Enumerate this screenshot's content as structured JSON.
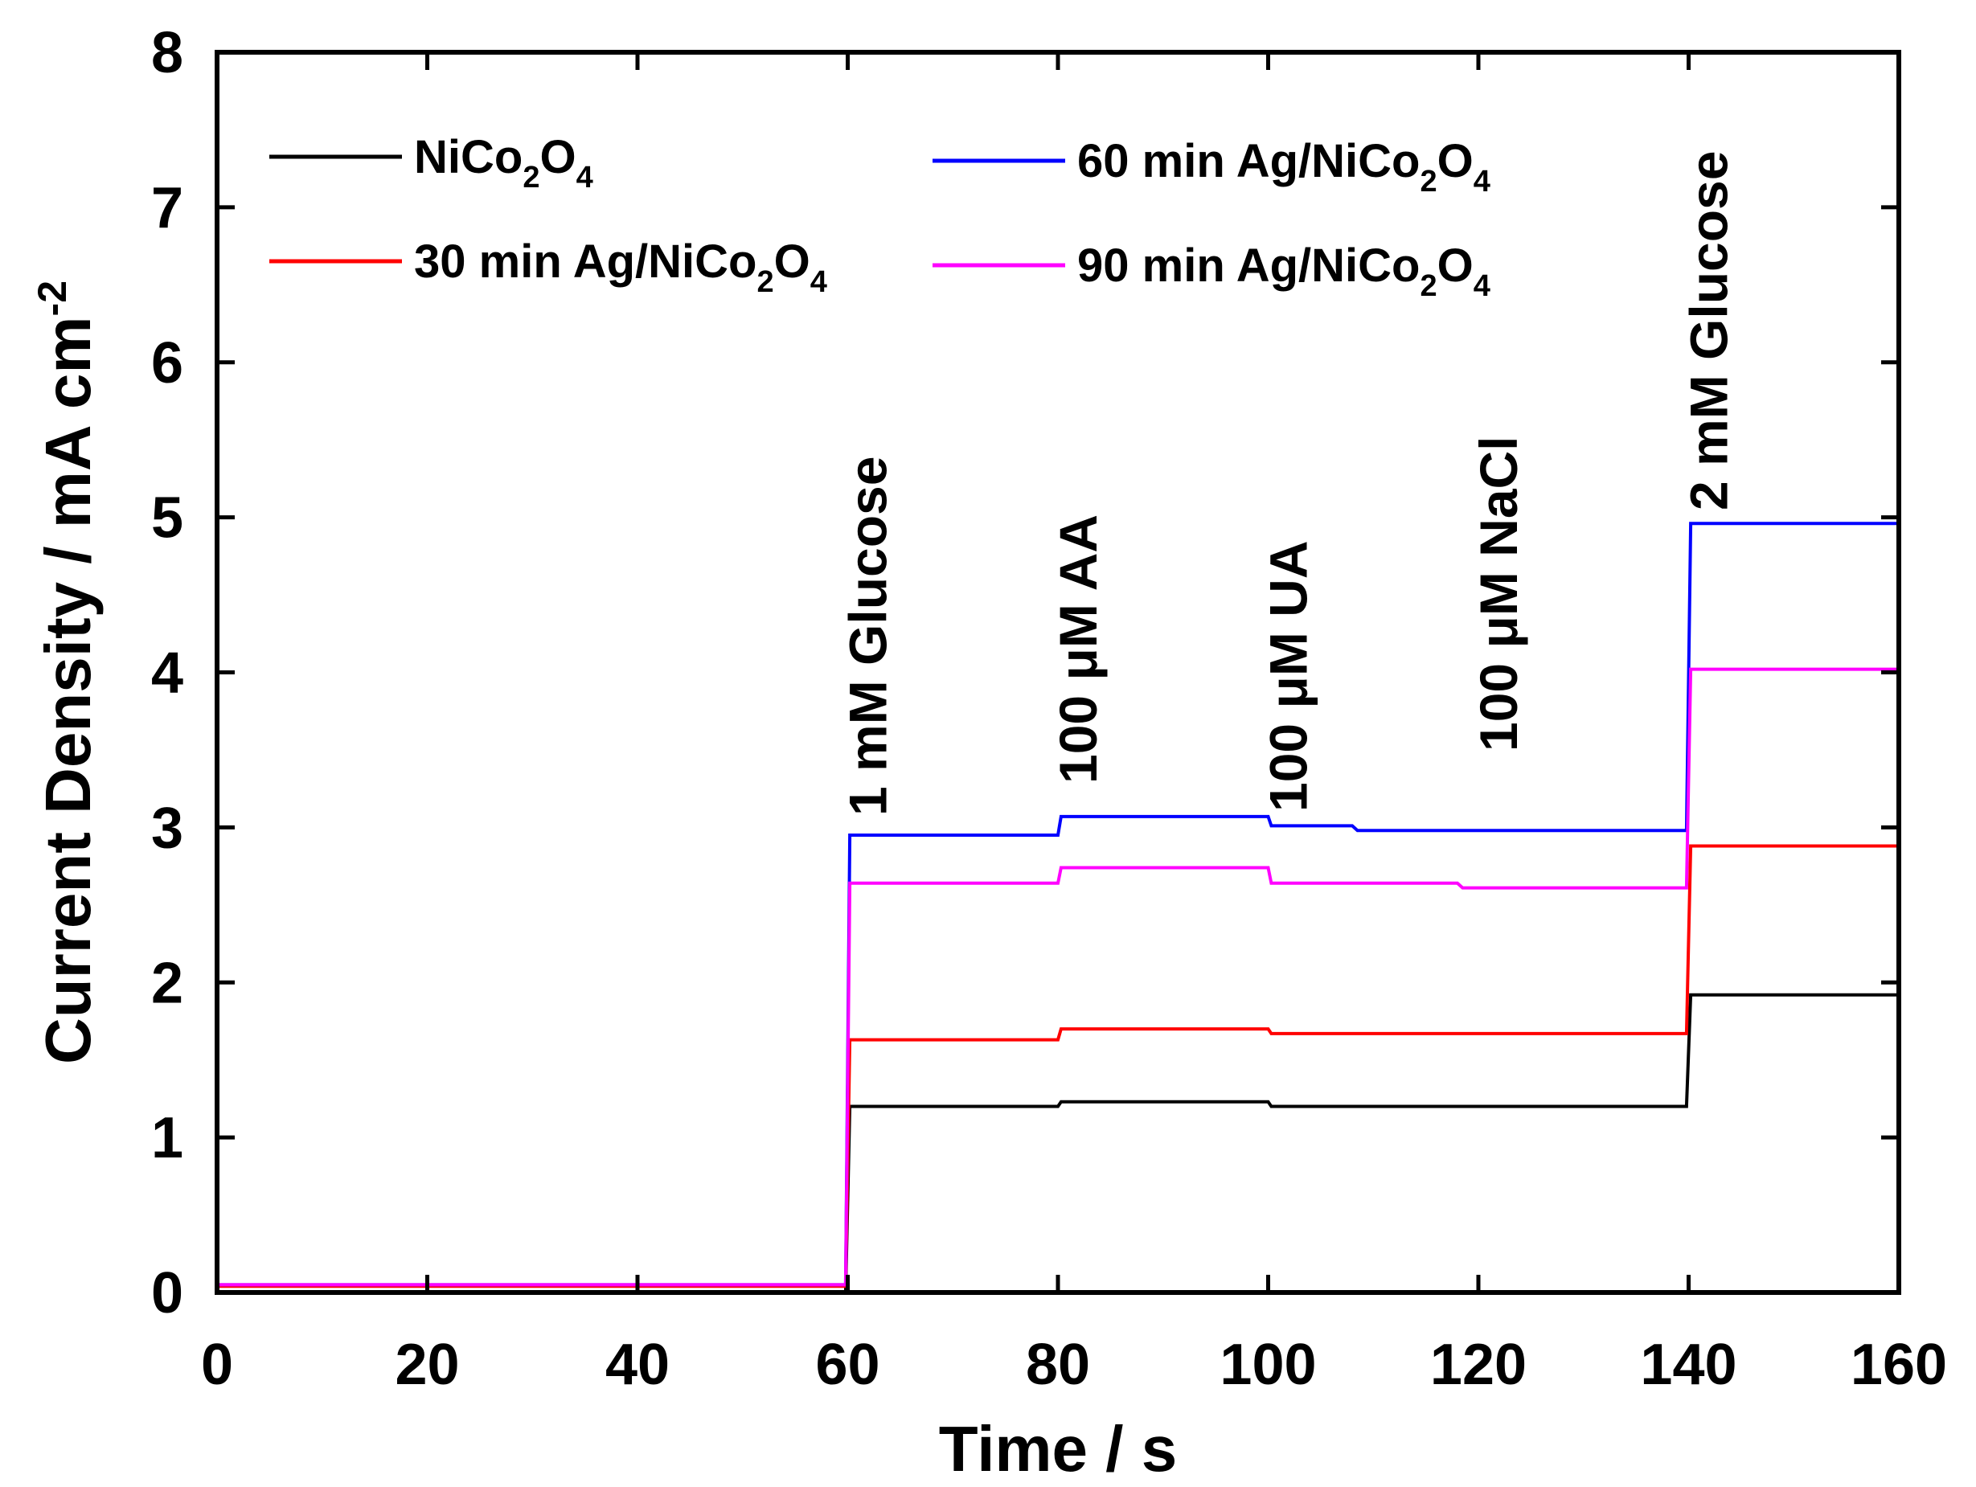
{
  "chart_data": {
    "type": "line",
    "xlabel": "Time / s",
    "ylabel_text": "Current Density / mA cm",
    "ylabel_sup": "-2",
    "xlim": [
      0,
      160
    ],
    "ylim": [
      0,
      8
    ],
    "x_ticks": [
      "0",
      "20",
      "40",
      "60",
      "80",
      "100",
      "120",
      "140",
      "160"
    ],
    "y_ticks": [
      "0",
      "1",
      "2",
      "3",
      "4",
      "5",
      "6",
      "7",
      "8"
    ],
    "grid": false,
    "legend_position": "top-left",
    "annotations": [
      {
        "text": "1 mM Glucose",
        "x": 60
      },
      {
        "text": "100 μM AA",
        "x": 80
      },
      {
        "text": "100 μM UA",
        "x": 100
      },
      {
        "text": "100 μM NaCl",
        "x": 120
      },
      {
        "text": "2 mM Glucose",
        "x": 140
      }
    ],
    "series": [
      {
        "legend": {
          "prefix": "",
          "parts": [
            [
              "N",
              ""
            ],
            [
              "iCo",
              ""
            ],
            [
              "2",
              "sub"
            ],
            [
              "O",
              ""
            ],
            [
              "4",
              "sub"
            ]
          ]
        },
        "color": "#000000",
        "points": [
          [
            0,
            0.0
          ],
          [
            59.8,
            0.0
          ],
          [
            60.2,
            1.2
          ],
          [
            80,
            1.2
          ],
          [
            80.3,
            1.23
          ],
          [
            100,
            1.23
          ],
          [
            100.3,
            1.2
          ],
          [
            139.8,
            1.2
          ],
          [
            140.2,
            1.92
          ],
          [
            160,
            1.92
          ]
        ]
      },
      {
        "legend": {
          "prefix": "30 min Ag/",
          "parts": [
            [
              "N",
              ""
            ],
            [
              "iCo",
              ""
            ],
            [
              "2",
              "sub"
            ],
            [
              "O",
              ""
            ],
            [
              "4",
              "sub"
            ]
          ]
        },
        "color": "#ff0000",
        "points": [
          [
            0,
            0.04
          ],
          [
            59.8,
            0.04
          ],
          [
            60.2,
            1.63
          ],
          [
            80,
            1.63
          ],
          [
            80.3,
            1.7
          ],
          [
            100,
            1.7
          ],
          [
            100.3,
            1.67
          ],
          [
            139.8,
            1.67
          ],
          [
            140.2,
            2.88
          ],
          [
            160,
            2.88
          ]
        ]
      },
      {
        "legend": {
          "prefix": "60 min Ag/",
          "parts": [
            [
              "N",
              ""
            ],
            [
              "iCo",
              ""
            ],
            [
              "2",
              "sub"
            ],
            [
              "O",
              ""
            ],
            [
              "4",
              "sub"
            ]
          ]
        },
        "color": "#0000ff",
        "points": [
          [
            0,
            0.05
          ],
          [
            59.8,
            0.05
          ],
          [
            60.2,
            2.95
          ],
          [
            80,
            2.95
          ],
          [
            80.3,
            3.07
          ],
          [
            100,
            3.07
          ],
          [
            100.3,
            3.01
          ],
          [
            108,
            3.01
          ],
          [
            108.5,
            2.98
          ],
          [
            139.8,
            2.98
          ],
          [
            140.2,
            4.96
          ],
          [
            160,
            4.96
          ]
        ]
      },
      {
        "legend": {
          "prefix": "90 min Ag/",
          "parts": [
            [
              "N",
              ""
            ],
            [
              "iCo",
              ""
            ],
            [
              "2",
              "sub"
            ],
            [
              "O",
              ""
            ],
            [
              "4",
              "sub"
            ]
          ]
        },
        "color": "#ff00ff",
        "points": [
          [
            0,
            0.05
          ],
          [
            59.8,
            0.05
          ],
          [
            60.2,
            2.64
          ],
          [
            80,
            2.64
          ],
          [
            80.3,
            2.74
          ],
          [
            100,
            2.74
          ],
          [
            100.3,
            2.64
          ],
          [
            118,
            2.64
          ],
          [
            118.5,
            2.61
          ],
          [
            139.8,
            2.61
          ],
          [
            140.2,
            4.02
          ],
          [
            160,
            4.02
          ]
        ]
      }
    ]
  }
}
